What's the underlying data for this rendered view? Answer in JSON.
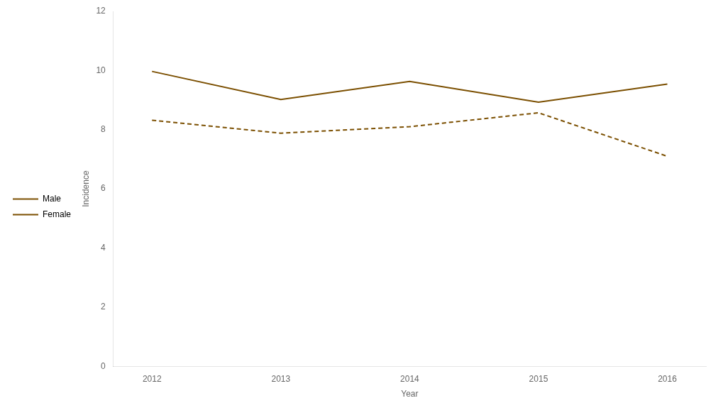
{
  "chart_data": {
    "type": "line",
    "x": [
      2012,
      2013,
      2014,
      2015,
      2016
    ],
    "series": [
      {
        "name": "Male",
        "color": "#7B4F00",
        "line_style": "solid",
        "values": [
          9.97,
          9.02,
          9.63,
          8.93,
          9.54
        ]
      },
      {
        "name": "Female",
        "color": "#7B4F00",
        "line_style": "dashed",
        "values": [
          8.32,
          7.88,
          8.1,
          8.57,
          7.1
        ]
      }
    ],
    "xlabel": "Year",
    "ylabel": "Incidence",
    "xlim": [
      2011.7,
      2016.3
    ],
    "xticks": [
      2012,
      2013,
      2014,
      2015,
      2016
    ],
    "ylim": [
      0,
      12
    ],
    "yticks": [
      0,
      2,
      4,
      6,
      8,
      10,
      12
    ],
    "grid": false,
    "legend": "left"
  }
}
